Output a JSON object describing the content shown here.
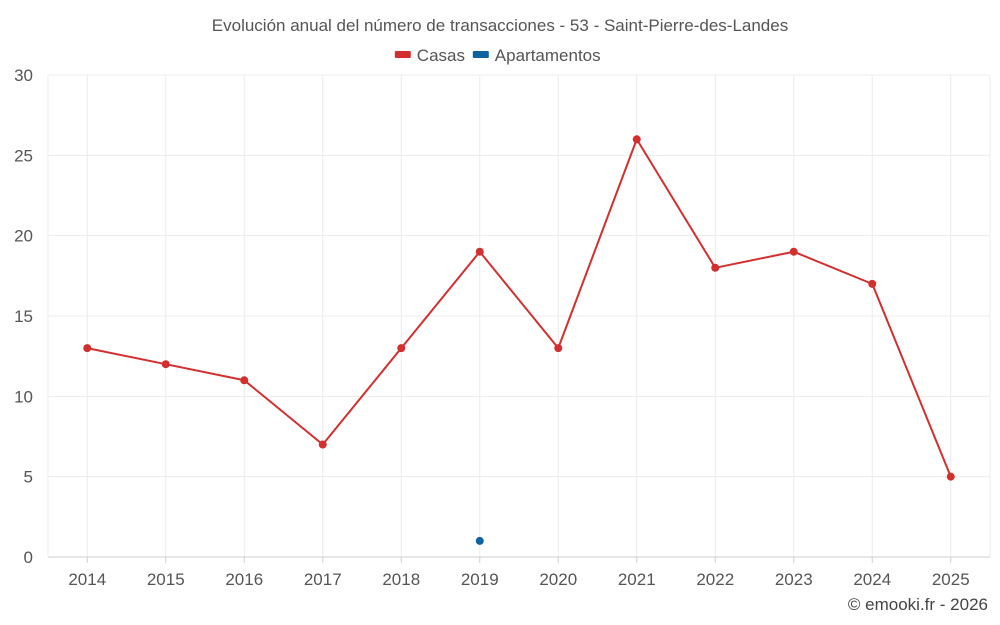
{
  "chart_data": {
    "type": "line",
    "title": "Evolución anual del número de transacciones - 53 - Saint-Pierre-des-Landes",
    "categories": [
      "2014",
      "2015",
      "2016",
      "2017",
      "2018",
      "2019",
      "2020",
      "2021",
      "2022",
      "2023",
      "2024",
      "2025"
    ],
    "series": [
      {
        "name": "Casas",
        "color": "#d32f2f",
        "values": [
          13,
          12,
          11,
          7,
          13,
          19,
          13,
          26,
          18,
          19,
          17,
          5
        ]
      },
      {
        "name": "Apartamentos",
        "color": "#0d62a0",
        "values": [
          null,
          null,
          null,
          null,
          null,
          1,
          null,
          null,
          null,
          null,
          null,
          null
        ]
      }
    ],
    "ylim": [
      0,
      30
    ],
    "yticks": [
      0,
      5,
      10,
      15,
      20,
      25,
      30
    ],
    "xlabel": "",
    "ylabel": "",
    "grid": true,
    "legend": "top-center",
    "credit": "© emooki.fr - 2026"
  }
}
